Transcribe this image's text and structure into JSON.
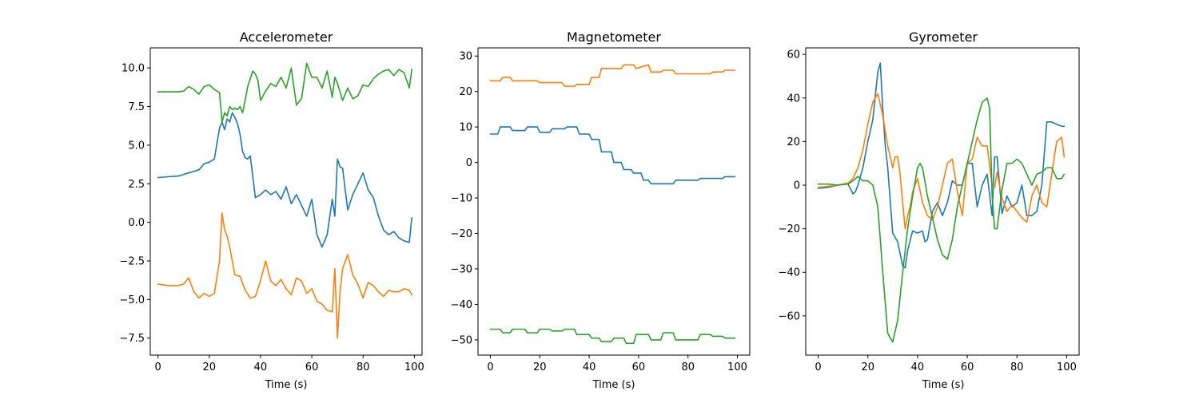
{
  "colors": {
    "blue": "#1f77b4",
    "orange": "#ff7f0e",
    "green": "#2ca02c"
  },
  "chart_data": [
    {
      "type": "line",
      "title": "Accelerometer",
      "xlabel": "Time (s)",
      "ylabel": "",
      "xlim": [
        -3,
        103
      ],
      "ylim": [
        -8.6,
        11.3
      ],
      "xticks": [
        0,
        20,
        40,
        60,
        80,
        100
      ],
      "yticks": [
        -7.5,
        -5.0,
        -2.5,
        0.0,
        2.5,
        5.0,
        7.5,
        10.0
      ],
      "ytick_labels": [
        "−7.5",
        "−5.0",
        "−2.5",
        "0.0",
        "2.5",
        "5.0",
        "7.5",
        "10.0"
      ],
      "series": [
        {
          "color": "#1f77b4",
          "x": [
            0,
            4,
            8,
            10,
            12,
            14,
            16,
            18,
            20,
            22,
            24,
            25,
            26,
            27,
            28,
            29,
            30,
            31,
            32,
            33,
            34,
            35,
            36,
            38,
            40,
            42,
            44,
            46,
            48,
            50,
            52,
            54,
            56,
            58,
            60,
            62,
            64,
            66,
            68,
            69,
            70,
            71,
            72,
            74,
            76,
            78,
            80,
            82,
            84,
            86,
            88,
            90,
            92,
            94,
            96,
            98,
            99
          ],
          "values": [
            2.9,
            2.95,
            3.0,
            3.1,
            3.2,
            3.3,
            3.4,
            3.8,
            3.9,
            4.1,
            6.1,
            6.5,
            6.0,
            6.7,
            6.5,
            7.1,
            6.8,
            6.4,
            5.7,
            4.6,
            4.2,
            4.1,
            4.3,
            1.6,
            1.8,
            2.1,
            1.8,
            2.0,
            1.5,
            2.3,
            1.2,
            1.8,
            1.1,
            0.4,
            1.5,
            -0.8,
            -1.6,
            -0.8,
            1.5,
            0.4,
            4.1,
            3.6,
            3.5,
            0.8,
            1.8,
            2.5,
            3.2,
            2.1,
            1.6,
            0.4,
            -0.5,
            -0.8,
            -0.6,
            -1.0,
            -1.2,
            -1.3,
            0.3
          ]
        },
        {
          "color": "#ff7f0e",
          "x": [
            0,
            4,
            8,
            10,
            12,
            14,
            16,
            18,
            20,
            22,
            24,
            25,
            26,
            27,
            28,
            30,
            32,
            34,
            36,
            38,
            40,
            42,
            44,
            46,
            48,
            50,
            52,
            54,
            56,
            58,
            60,
            62,
            64,
            66,
            68,
            69,
            70,
            71,
            72,
            74,
            76,
            78,
            80,
            82,
            84,
            86,
            88,
            90,
            92,
            94,
            96,
            98,
            99
          ],
          "values": [
            -4.0,
            -4.1,
            -4.1,
            -4.0,
            -3.6,
            -4.5,
            -4.9,
            -4.6,
            -4.8,
            -4.6,
            -2.5,
            0.6,
            -0.5,
            -0.9,
            -1.6,
            -3.4,
            -3.5,
            -4.4,
            -4.9,
            -4.8,
            -3.8,
            -2.5,
            -3.8,
            -4.1,
            -3.7,
            -4.3,
            -4.7,
            -3.6,
            -3.8,
            -4.6,
            -4.3,
            -5.1,
            -5.3,
            -5.7,
            -5.8,
            -3.0,
            -7.5,
            -4.5,
            -3.0,
            -2.1,
            -3.4,
            -4.0,
            -4.9,
            -3.9,
            -4.1,
            -4.5,
            -4.8,
            -4.4,
            -4.5,
            -4.5,
            -4.3,
            -4.4,
            -4.7
          ]
        },
        {
          "color": "#2ca02c",
          "x": [
            0,
            4,
            8,
            10,
            12,
            14,
            16,
            18,
            20,
            22,
            24,
            25,
            26,
            27,
            28,
            29,
            30,
            31,
            32,
            33,
            34,
            35,
            36,
            37,
            38,
            39,
            40,
            42,
            44,
            46,
            48,
            50,
            52,
            54,
            56,
            58,
            60,
            62,
            64,
            66,
            68,
            69,
            70,
            72,
            74,
            76,
            78,
            80,
            82,
            84,
            86,
            88,
            90,
            92,
            94,
            96,
            98,
            99
          ],
          "values": [
            8.45,
            8.45,
            8.45,
            8.5,
            8.8,
            8.6,
            8.3,
            8.8,
            8.9,
            8.6,
            8.4,
            6.5,
            7.1,
            6.9,
            7.5,
            7.3,
            7.4,
            7.3,
            7.5,
            7.1,
            7.9,
            8.8,
            9.3,
            9.8,
            9.6,
            9.2,
            7.9,
            8.5,
            9.0,
            8.8,
            9.4,
            8.7,
            10.0,
            7.6,
            8.0,
            10.3,
            9.4,
            9.4,
            8.7,
            9.8,
            8.1,
            9.4,
            9.0,
            7.9,
            8.7,
            8.0,
            8.2,
            8.9,
            8.8,
            9.3,
            9.6,
            9.8,
            9.9,
            9.5,
            9.9,
            9.7,
            8.7,
            9.9
          ]
        }
      ]
    },
    {
      "type": "line",
      "title": "Magnetometer",
      "xlabel": "Time (s)",
      "ylabel": "",
      "xlim": [
        -5,
        105
      ],
      "ylim": [
        -54.3,
        32.3
      ],
      "xticks": [
        0,
        20,
        40,
        60,
        80,
        100
      ],
      "yticks": [
        -50,
        -40,
        -30,
        -20,
        -10,
        0,
        10,
        20,
        30
      ],
      "ytick_labels": [
        "−50",
        "−40",
        "−30",
        "−20",
        "−10",
        "0",
        "10",
        "20",
        "30"
      ],
      "series": [
        {
          "color": "#1f77b4",
          "x": [
            0,
            3,
            4,
            8,
            9,
            14,
            15,
            19,
            20,
            24,
            25,
            30,
            31,
            35,
            36,
            40,
            41,
            44,
            45,
            49,
            50,
            53,
            54,
            57,
            58,
            61,
            62,
            64,
            65,
            74,
            75,
            84,
            85,
            89,
            90,
            94,
            95,
            99
          ],
          "values": [
            8,
            8,
            10,
            10,
            9,
            9,
            10,
            10,
            8.5,
            8.5,
            9.5,
            9.5,
            10,
            10,
            8,
            8,
            6.5,
            6.5,
            3,
            3,
            0,
            0,
            -2,
            -2,
            -3,
            -3,
            -5,
            -5,
            -6,
            -6,
            -5,
            -5,
            -4.5,
            -4.5,
            -4.5,
            -4.5,
            -4,
            -4
          ]
        },
        {
          "color": "#ff7f0e",
          "x": [
            0,
            4,
            5,
            8,
            9,
            14,
            15,
            19,
            20,
            24,
            25,
            29,
            30,
            34,
            35,
            40,
            41,
            44,
            45,
            49,
            50,
            53,
            54,
            58,
            59,
            64,
            65,
            69,
            70,
            74,
            75,
            79,
            80,
            89,
            90,
            94,
            95,
            99
          ],
          "values": [
            23,
            23,
            24,
            24,
            23,
            23,
            23,
            23,
            22.5,
            22.5,
            22.5,
            22.5,
            21.5,
            21.5,
            22,
            22,
            24,
            24,
            26.5,
            26.5,
            26.5,
            26.5,
            27.5,
            27.5,
            26.5,
            27.5,
            25.5,
            25.5,
            26,
            26,
            25,
            25,
            25,
            25,
            25.5,
            25.5,
            26,
            26
          ]
        },
        {
          "color": "#2ca02c",
          "x": [
            0,
            4,
            5,
            8,
            9,
            14,
            15,
            19,
            20,
            24,
            25,
            29,
            30,
            34,
            35,
            40,
            41,
            44,
            45,
            49,
            50,
            54,
            55,
            58,
            59,
            64,
            65,
            69,
            70,
            74,
            75,
            84,
            85,
            89,
            90,
            94,
            95,
            99
          ],
          "values": [
            -47,
            -47,
            -48,
            -48,
            -47,
            -47,
            -48,
            -48,
            -47,
            -47,
            -47.5,
            -47.5,
            -47,
            -47,
            -48.5,
            -48.5,
            -49.5,
            -49.5,
            -50.5,
            -50.5,
            -49.5,
            -49.5,
            -51,
            -51,
            -48.5,
            -48.5,
            -50,
            -50,
            -48,
            -48,
            -50,
            -50,
            -48.5,
            -48.5,
            -49,
            -49,
            -49.5,
            -49.5
          ]
        }
      ]
    },
    {
      "type": "line",
      "title": "Gyrometer",
      "xlabel": "Time (s)",
      "ylabel": "",
      "xlim": [
        -5,
        105
      ],
      "ylim": [
        -78,
        63
      ],
      "xticks": [
        0,
        20,
        40,
        60,
        80,
        100
      ],
      "yticks": [
        -60,
        -40,
        -20,
        0,
        20,
        40,
        60
      ],
      "ytick_labels": [
        "−60",
        "−40",
        "−20",
        "0",
        "20",
        "40",
        "60"
      ],
      "series": [
        {
          "color": "#1f77b4",
          "x": [
            0,
            4,
            8,
            10,
            12,
            14,
            15,
            16,
            18,
            20,
            22,
            24,
            25,
            26,
            27,
            28,
            30,
            32,
            34,
            35,
            36,
            38,
            40,
            42,
            43,
            44,
            46,
            48,
            50,
            52,
            54,
            56,
            58,
            60,
            62,
            64,
            66,
            68,
            70,
            71,
            72,
            73,
            74,
            76,
            78,
            80,
            82,
            84,
            86,
            88,
            90,
            92,
            94,
            96,
            98,
            99
          ],
          "values": [
            -1.5,
            -1,
            0,
            0.5,
            0.5,
            -4,
            -3,
            0,
            8,
            20,
            30,
            52,
            56,
            35,
            18,
            8,
            -22,
            -26,
            -37,
            -38,
            -30,
            -21,
            -22,
            -21,
            -26,
            -25,
            -12,
            -8,
            -14,
            -8,
            2,
            0,
            0,
            10,
            10,
            -10,
            0,
            5,
            -14,
            13,
            13,
            0,
            -13,
            -5,
            -10,
            -8,
            0,
            -14,
            -14,
            -12,
            0,
            29,
            29,
            28,
            27,
            27
          ]
        },
        {
          "color": "#ff7f0e",
          "x": [
            0,
            4,
            8,
            12,
            14,
            16,
            18,
            20,
            22,
            24,
            26,
            28,
            30,
            31,
            32,
            33,
            34,
            35,
            36,
            37,
            38,
            40,
            42,
            44,
            46,
            48,
            50,
            52,
            54,
            56,
            58,
            60,
            62,
            64,
            66,
            68,
            70,
            71,
            72,
            74,
            76,
            78,
            80,
            82,
            84,
            86,
            88,
            90,
            92,
            94,
            96,
            98,
            99
          ],
          "values": [
            -1,
            -0.5,
            0,
            1,
            3,
            8,
            16,
            28,
            38,
            42,
            32,
            18,
            8,
            13,
            13,
            5,
            -8,
            -20,
            -14,
            -10,
            -3,
            3,
            -8,
            -14,
            -16,
            -10,
            0,
            10,
            12,
            -3,
            -14,
            10,
            12,
            22,
            18,
            18,
            0,
            -1,
            6,
            -6,
            -12,
            -9,
            -12,
            -15,
            -17,
            -5,
            0,
            -8,
            -10,
            5,
            20,
            22,
            13
          ]
        },
        {
          "color": "#2ca02c",
          "x": [
            0,
            4,
            8,
            12,
            14,
            16,
            18,
            20,
            22,
            24,
            26,
            28,
            30,
            32,
            34,
            36,
            38,
            40,
            41,
            42,
            44,
            46,
            48,
            50,
            52,
            54,
            56,
            58,
            60,
            62,
            64,
            66,
            68,
            69,
            70,
            71,
            72,
            74,
            76,
            78,
            80,
            82,
            84,
            86,
            88,
            90,
            92,
            94,
            96,
            98,
            99
          ],
          "values": [
            0.5,
            0.5,
            0,
            0.5,
            2,
            4,
            2,
            2,
            0,
            -10,
            -40,
            -68,
            -72,
            -62,
            -40,
            -20,
            -5,
            8,
            10,
            8,
            -5,
            -15,
            -25,
            -32,
            -34,
            -25,
            -10,
            0,
            10,
            20,
            30,
            38,
            40,
            35,
            -5,
            -20,
            -20,
            -2,
            10,
            10,
            12,
            10,
            5,
            0,
            5,
            6,
            8,
            8,
            3,
            3,
            5
          ]
        }
      ]
    }
  ]
}
